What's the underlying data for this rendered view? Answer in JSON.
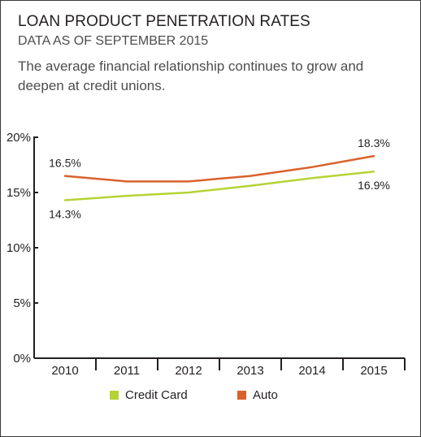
{
  "header": {
    "title": "LOAN PRODUCT PENETRATION RATES",
    "subtitle": "DATA AS OF SEPTEMBER 2015",
    "description": "The average financial relationship continues to grow and deepen at credit unions."
  },
  "colors": {
    "credit_card": "#b5d334",
    "auto": "#d9622b",
    "axis": "#231f20",
    "frame": "#3a3a3a"
  },
  "chart_data": {
    "type": "line",
    "categories": [
      "2010",
      "2011",
      "2012",
      "2013",
      "2014",
      "2015"
    ],
    "ylim": [
      0,
      20
    ],
    "yticks": [
      0,
      5,
      10,
      15,
      20
    ],
    "ytick_labels": [
      "0%",
      "5%",
      "10%",
      "15%",
      "20%"
    ],
    "grid": false,
    "legend_position": "bottom",
    "series": [
      {
        "name": "Credit Card",
        "color": "#b5d334",
        "values": [
          14.3,
          14.7,
          15.0,
          15.6,
          16.3,
          16.9
        ],
        "labels": [
          {
            "index": 0,
            "text": "14.3%",
            "placement": "below"
          },
          {
            "index": 5,
            "text": "16.9%",
            "placement": "below"
          }
        ]
      },
      {
        "name": "Auto",
        "color": "#d9622b",
        "values": [
          16.5,
          16.0,
          16.0,
          16.5,
          17.3,
          18.3
        ],
        "labels": [
          {
            "index": 0,
            "text": "16.5%",
            "placement": "above"
          },
          {
            "index": 5,
            "text": "18.3%",
            "placement": "above"
          }
        ]
      }
    ],
    "title": "",
    "xlabel": "",
    "ylabel": ""
  }
}
